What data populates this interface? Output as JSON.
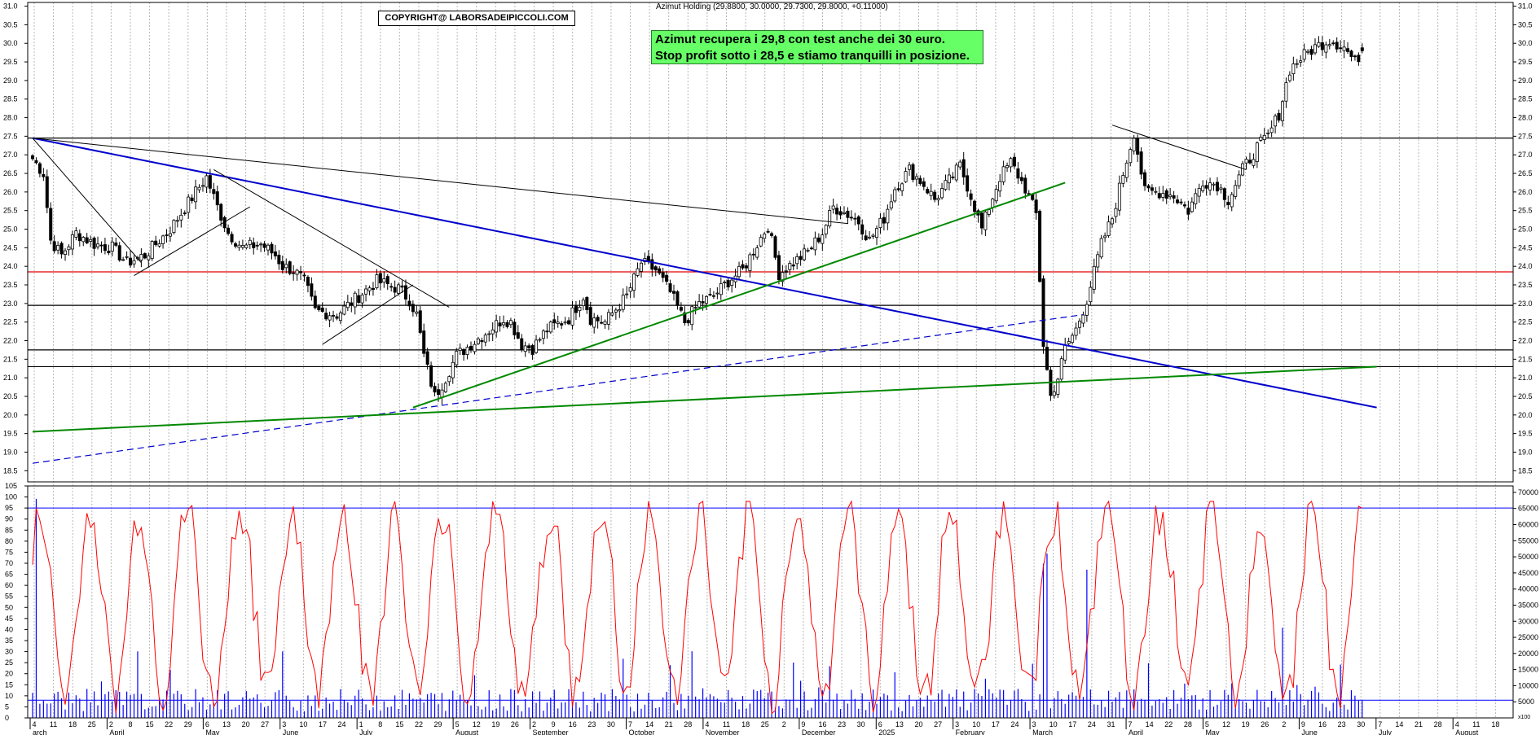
{
  "header": {
    "title": "Azimut Holding (29.8800, 30.0000, 29.7300, 29.8000, +0.11000)",
    "copyright": "COPYRIGHT@ LABORSADEIPICCOLI.COM"
  },
  "annotation": {
    "line1": "Azimut recupera i 29,8 con test anche dei 30 euro.",
    "line2": "Stop profit sotto i 28,5 e stiamo tranquilli in posizione."
  },
  "chart_data": {
    "type": "candlestick",
    "instrument": "Azimut Holding",
    "last_bar": {
      "open": 29.88,
      "high": 30.0,
      "low": 29.73,
      "close": 29.8,
      "change": 0.11
    },
    "price_axis": {
      "ylim": [
        18.2,
        31.1
      ],
      "ticks": [
        "18.5",
        "19.0",
        "19.5",
        "20.0",
        "20.5",
        "21.0",
        "21.5",
        "22.0",
        "22.5",
        "23.0",
        "23.5",
        "24.0",
        "24.5",
        "25.0",
        "25.5",
        "26.0",
        "26.5",
        "27.0",
        "27.5",
        "28.0",
        "28.5",
        "29.0",
        "29.5",
        "30.0",
        "30.5",
        "31.0"
      ]
    },
    "oscillator_axis": {
      "ylim": [
        0,
        105
      ],
      "ticks": [
        "0",
        "5",
        "10",
        "15",
        "20",
        "25",
        "30",
        "35",
        "40",
        "45",
        "50",
        "55",
        "60",
        "65",
        "70",
        "75",
        "80",
        "85",
        "90",
        "95",
        "100",
        "105"
      ]
    },
    "volume_axis": {
      "ylim": [
        0,
        72000
      ],
      "ticks": [
        "5000",
        "10000",
        "15000",
        "20000",
        "25000",
        "30000",
        "35000",
        "40000",
        "45000",
        "50000",
        "55000",
        "60000",
        "65000",
        "70000"
      ],
      "unit_label": "x100"
    },
    "x_day_ticks": [
      "4",
      "11",
      "18",
      "25",
      "2",
      "8",
      "15",
      "22",
      "29",
      "6",
      "13",
      "20",
      "27",
      "3",
      "10",
      "17",
      "24",
      "1",
      "8",
      "15",
      "22",
      "29",
      "5",
      "12",
      "19",
      "26",
      "2",
      "9",
      "16",
      "23",
      "30",
      "7",
      "14",
      "21",
      "28",
      "4",
      "11",
      "18",
      "25",
      "2",
      "9",
      "16",
      "23",
      "30",
      "6",
      "13",
      "20",
      "27",
      "3",
      "10",
      "17",
      "24",
      "3",
      "10",
      "17",
      "24",
      "31",
      "7",
      "14",
      "22",
      "28",
      "5",
      "12",
      "19",
      "26",
      "2",
      "9",
      "16",
      "23",
      "30",
      "7",
      "14",
      "21",
      "28",
      "4",
      "11",
      "18"
    ],
    "x_month_labels": [
      "arch",
      "April",
      "May",
      "June",
      "July",
      "August",
      "September",
      "October",
      "November",
      "December",
      "2025",
      "February",
      "March",
      "April",
      "May",
      "June",
      "July",
      "August"
    ],
    "horizontal_levels": [
      {
        "price": 27.45,
        "color": "#000000"
      },
      {
        "price": 23.85,
        "color": "#e00000"
      },
      {
        "price": 22.95,
        "color": "#000000"
      },
      {
        "price": 21.75,
        "color": "#000000"
      },
      {
        "price": 21.3,
        "color": "#000000"
      }
    ],
    "trendlines": [
      {
        "color": "#0000cc",
        "style": "solid",
        "from": [
          0,
          27.45
        ],
        "to": [
          371,
          20.2
        ]
      },
      {
        "color": "#0000cc",
        "style": "dashed",
        "from": [
          0,
          18.7
        ],
        "to": [
          290,
          22.7
        ]
      },
      {
        "color": "#008800",
        "style": "solid",
        "from": [
          0,
          19.55
        ],
        "to": [
          371,
          21.3
        ]
      },
      {
        "color": "#008800",
        "style": "solid",
        "from": [
          105,
          20.2
        ],
        "to": [
          285,
          26.25
        ]
      },
      {
        "color": "#000000",
        "style": "solid",
        "from": [
          0,
          27.45
        ],
        "to": [
          225,
          25.15
        ]
      },
      {
        "color": "#000000",
        "style": "solid",
        "from": [
          0,
          27.45
        ],
        "to": [
          30,
          24.1
        ]
      },
      {
        "color": "#000000",
        "style": "solid",
        "from": [
          28,
          23.75
        ],
        "to": [
          60,
          25.6
        ]
      },
      {
        "color": "#000000",
        "style": "solid",
        "from": [
          50,
          26.6
        ],
        "to": [
          115,
          22.9
        ]
      },
      {
        "color": "#000000",
        "style": "solid",
        "from": [
          80,
          21.9
        ],
        "to": [
          105,
          23.5
        ]
      },
      {
        "color": "#000000",
        "style": "solid",
        "from": [
          298,
          27.8
        ],
        "to": [
          335,
          26.6
        ]
      }
    ],
    "stochastic_bands": [
      95,
      8
    ],
    "colors": {
      "up": "#ffffff",
      "down": "#000000",
      "oscillator": "#ff0000",
      "volume": "#0000ff",
      "bands": "#0000ff"
    },
    "anchors": [
      [
        0,
        26.9
      ],
      [
        3,
        26.5
      ],
      [
        5,
        24.7
      ],
      [
        8,
        24.3
      ],
      [
        12,
        24.9
      ],
      [
        17,
        24.6
      ],
      [
        22,
        24.5
      ],
      [
        26,
        24.1
      ],
      [
        31,
        24.3
      ],
      [
        38,
        25.0
      ],
      [
        45,
        26.0
      ],
      [
        48,
        26.4
      ],
      [
        51,
        25.6
      ],
      [
        54,
        24.9
      ],
      [
        58,
        24.5
      ],
      [
        63,
        24.6
      ],
      [
        67,
        24.3
      ],
      [
        69,
        24.0
      ],
      [
        72,
        23.9
      ],
      [
        75,
        23.6
      ],
      [
        78,
        22.8
      ],
      [
        84,
        22.7
      ],
      [
        90,
        23.2
      ],
      [
        95,
        23.6
      ],
      [
        101,
        23.4
      ],
      [
        104,
        23.1
      ],
      [
        106,
        22.7
      ],
      [
        108,
        21.6
      ],
      [
        111,
        20.5
      ],
      [
        114,
        21.0
      ],
      [
        117,
        21.6
      ],
      [
        121,
        21.9
      ],
      [
        125,
        22.2
      ],
      [
        130,
        22.6
      ],
      [
        132,
        22.5
      ],
      [
        135,
        21.9
      ],
      [
        138,
        21.8
      ],
      [
        142,
        22.3
      ],
      [
        148,
        22.6
      ],
      [
        152,
        23.2
      ],
      [
        154,
        22.6
      ],
      [
        158,
        22.5
      ],
      [
        164,
        23.2
      ],
      [
        168,
        24.1
      ],
      [
        172,
        23.9
      ],
      [
        176,
        23.3
      ],
      [
        180,
        22.5
      ],
      [
        184,
        23.0
      ],
      [
        188,
        23.2
      ],
      [
        192,
        23.6
      ],
      [
        196,
        23.9
      ],
      [
        200,
        24.6
      ],
      [
        203,
        25.1
      ],
      [
        206,
        23.8
      ],
      [
        210,
        24.1
      ],
      [
        214,
        24.4
      ],
      [
        218,
        24.9
      ],
      [
        221,
        25.6
      ],
      [
        225,
        25.4
      ],
      [
        228,
        25.2
      ],
      [
        231,
        24.7
      ],
      [
        235,
        25.3
      ],
      [
        238,
        26.1
      ],
      [
        242,
        26.6
      ],
      [
        246,
        26.2
      ],
      [
        249,
        25.8
      ],
      [
        253,
        26.3
      ],
      [
        256,
        26.7
      ],
      [
        259,
        25.9
      ],
      [
        262,
        25.0
      ],
      [
        264,
        25.6
      ],
      [
        267,
        26.4
      ],
      [
        270,
        26.8
      ],
      [
        274,
        26.1
      ],
      [
        277,
        25.4
      ],
      [
        279,
        21.9
      ],
      [
        281,
        20.5
      ],
      [
        283,
        21.0
      ],
      [
        285,
        21.8
      ],
      [
        288,
        22.3
      ],
      [
        291,
        23.1
      ],
      [
        295,
        24.6
      ],
      [
        298,
        25.3
      ],
      [
        301,
        26.5
      ],
      [
        304,
        27.6
      ],
      [
        307,
        26.0
      ],
      [
        311,
        26.0
      ],
      [
        315,
        25.9
      ],
      [
        319,
        25.5
      ],
      [
        323,
        26.3
      ],
      [
        327,
        26.2
      ],
      [
        330,
        25.8
      ],
      [
        334,
        26.6
      ],
      [
        338,
        27.2
      ],
      [
        341,
        27.5
      ],
      [
        344,
        28.1
      ],
      [
        347,
        29.3
      ],
      [
        350,
        29.6
      ],
      [
        354,
        29.9
      ],
      [
        358,
        30.1
      ],
      [
        362,
        29.9
      ],
      [
        365,
        29.5
      ],
      [
        367,
        29.8
      ]
    ]
  }
}
